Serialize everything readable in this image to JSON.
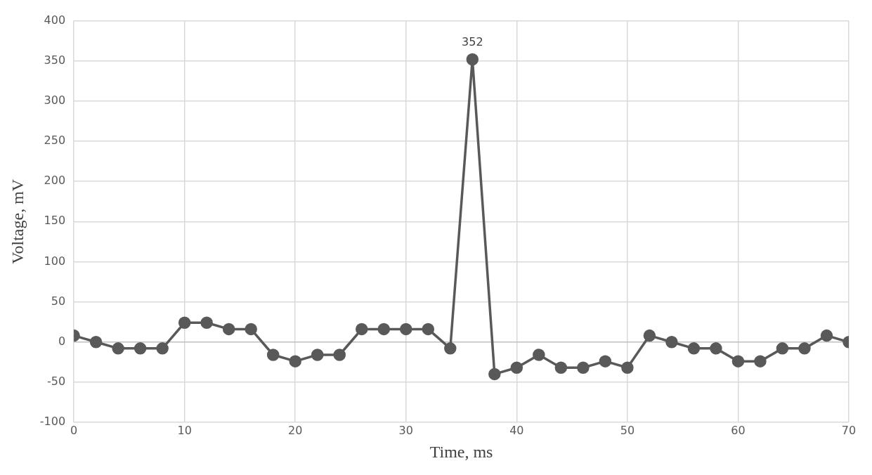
{
  "chart_data": {
    "type": "line",
    "xlabel": "Time, ms",
    "ylabel": "Voltage, mV",
    "x": [
      0,
      2,
      4,
      6,
      8,
      10,
      12,
      14,
      16,
      18,
      20,
      22,
      24,
      26,
      28,
      30,
      32,
      34,
      36,
      38,
      40,
      42,
      44,
      46,
      48,
      50,
      52,
      54,
      56,
      58,
      60,
      62,
      64,
      66,
      68,
      70
    ],
    "series": [
      {
        "color": "#595959",
        "values": [
          8,
          0,
          -8,
          -8,
          -8,
          24,
          24,
          16,
          16,
          -16,
          -24,
          -16,
          -16,
          16,
          16,
          16,
          16,
          -8,
          352,
          -40,
          -32,
          -16,
          -32,
          -32,
          -24,
          -32,
          8,
          0,
          -8,
          -8,
          -24,
          -24,
          -8,
          -8,
          8,
          0
        ],
        "value_labels": [
          null,
          null,
          null,
          null,
          null,
          null,
          null,
          null,
          null,
          null,
          null,
          null,
          null,
          null,
          null,
          null,
          null,
          null,
          "352",
          null,
          null,
          null,
          null,
          null,
          null,
          null,
          null,
          null,
          null,
          null,
          null,
          null,
          null,
          null,
          null,
          null
        ]
      }
    ],
    "xlim": [
      0,
      70
    ],
    "xticks": [
      0,
      10,
      20,
      30,
      40,
      50,
      60,
      70
    ],
    "ylim": [
      -100,
      400
    ],
    "yticks": [
      -100,
      -50,
      0,
      50,
      100,
      150,
      200,
      250,
      300,
      350,
      400
    ],
    "grid": true,
    "legend": false,
    "marker": "circle",
    "line_style": "solid"
  }
}
